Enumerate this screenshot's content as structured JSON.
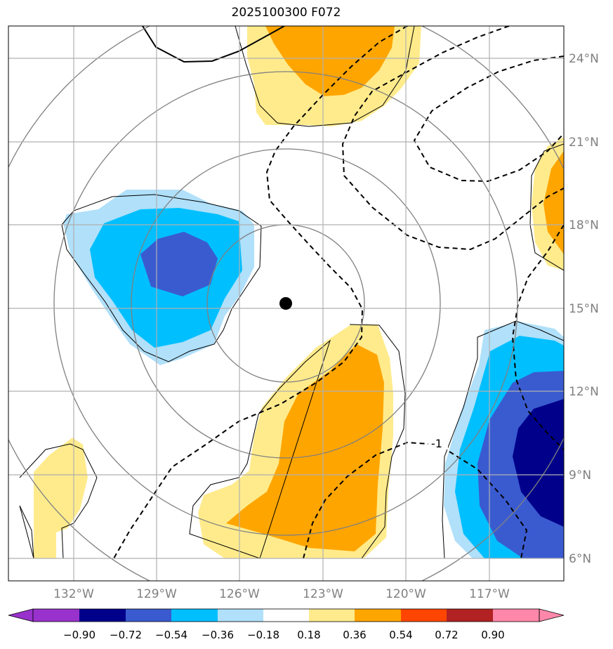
{
  "title": "2025100300 F072",
  "lon_ticks": [
    "132°W",
    "129°W",
    "126°W",
    "123°W",
    "120°W",
    "117°W"
  ],
  "lat_ticks": [
    "24°N",
    "21°N",
    "18°N",
    "15°N",
    "12°N",
    "9°N",
    "6°N"
  ],
  "colorbar": {
    "levels": [
      "−0.90",
      "−0.72",
      "−0.54",
      "−0.36",
      "−0.18",
      "0.18",
      "0.36",
      "0.54",
      "0.72",
      "0.90"
    ],
    "colors": [
      "#9932cc",
      "#00008b",
      "#3a5bd0",
      "#00bfff",
      "#b0e0fa",
      "#ffffff",
      "#ffeb8c",
      "#ffa500",
      "#ff4500",
      "#b22222",
      "#ff88aa"
    ]
  },
  "contour_label": "-1",
  "center_marker": {
    "lon": "124.4°W",
    "lat": "15.2°N"
  },
  "colors": {
    "grid": "#b0b0b0",
    "range_rings": "#808080",
    "tick_text": "#808080"
  }
}
